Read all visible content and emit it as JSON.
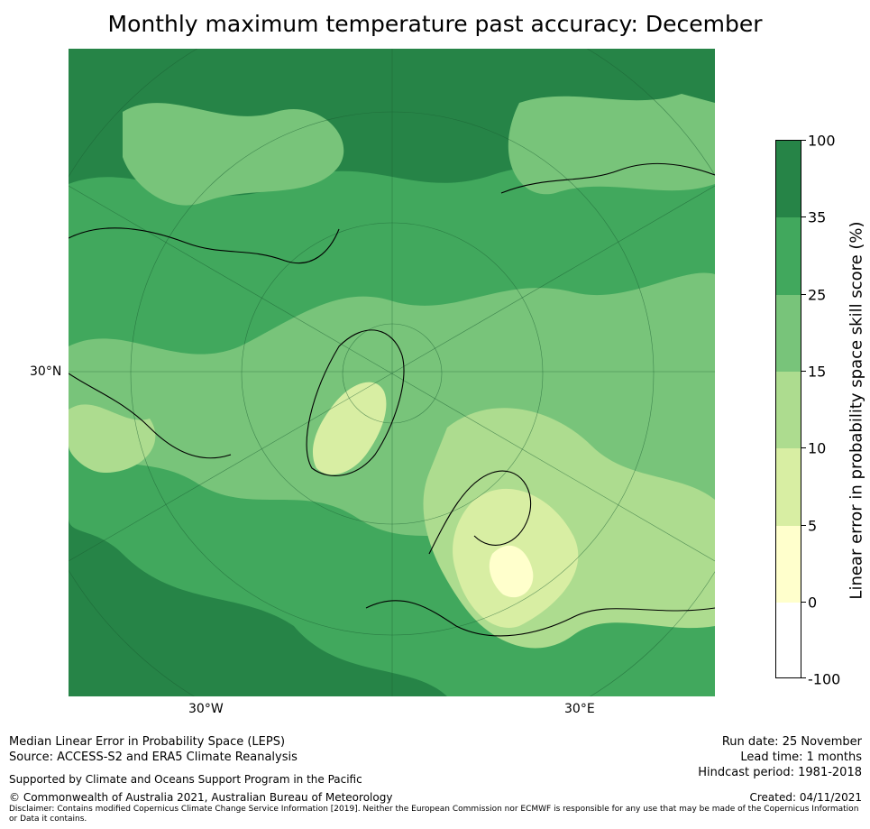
{
  "title": "Monthly maximum temperature past accuracy: December",
  "map": {
    "labels": {
      "lat_30n": "30°N",
      "lon_30w": "30°W",
      "lon_30e": "30°E"
    }
  },
  "colorbar": {
    "title": "Linear error in probability space skill score (%)",
    "ticks": [
      "100",
      "35",
      "25",
      "15",
      "10",
      "5",
      "0",
      "-100"
    ],
    "colors": [
      "#268447",
      "#41a85d",
      "#78c47a",
      "#addc8f",
      "#d8eea3",
      "#ffffcc",
      "#ffffff"
    ]
  },
  "footer": {
    "line1": "Median Linear Error in Probability Space (LEPS)",
    "line2": "Source: ACCESS-S2 and ERA5 Climate Reanalysis",
    "support": "Supported by Climate and Oceans Support Program in the Pacific",
    "copyright": "© Commonwealth of Australia 2021, Australian Bureau of Meteorology",
    "disclaimer": "Disclaimer: Contains modified Copernicus Climate Change Service Information [2019]. Neither the European Commission nor ECMWF is responsible for any use that may be made of the Copernicus Information or Data it contains.",
    "run_date": "Run date: 25 November",
    "lead_time": "Lead time: 1 months",
    "hindcast": "Hindcast period: 1981-2018",
    "created": "Created: 04/11/2021"
  }
}
